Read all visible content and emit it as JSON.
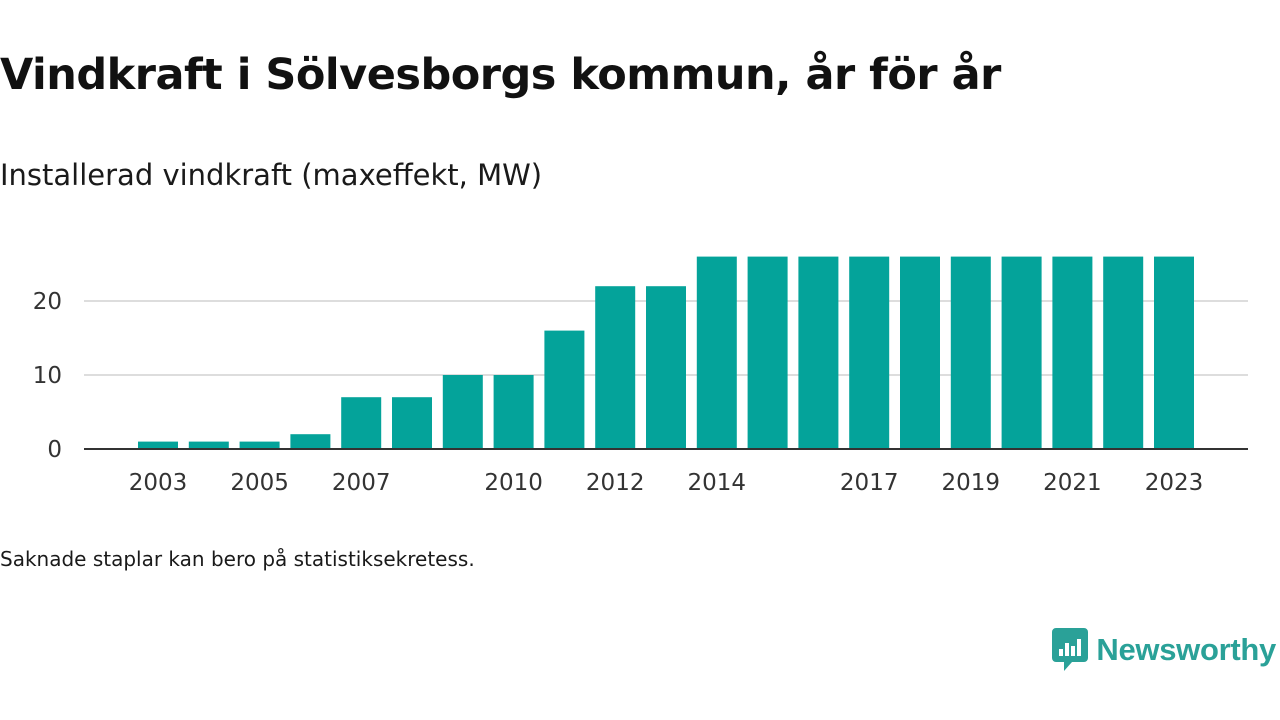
{
  "header": {
    "title": "Vindkraft i Sölvesborgs kommun, år för år",
    "subtitle": "Installerad vindkraft (maxeffekt, MW)"
  },
  "footer": {
    "note": "Saknade staplar kan bero på statistiksekretess.",
    "brand": "Newsworthy",
    "brand_icon": "bar-chart-speech-bubble-icon"
  },
  "colors": {
    "bar": "#04a39a",
    "grid": "#dddddd",
    "axis": "#333333",
    "brand": "#2aa198"
  },
  "chart_data": {
    "type": "bar",
    "title": "Vindkraft i Sölvesborgs kommun, år för år",
    "subtitle": "Installerad vindkraft (maxeffekt, MW)",
    "categories": [
      "2003",
      "2004",
      "2005",
      "2006",
      "2007",
      "2008",
      "2009",
      "2010",
      "2011",
      "2012",
      "2013",
      "2014",
      "2015",
      "2016",
      "2017",
      "2018",
      "2019",
      "2020",
      "2021",
      "2022",
      "2023"
    ],
    "values": [
      1,
      1,
      1,
      2,
      7,
      7,
      10,
      10,
      16,
      22,
      22,
      26,
      26,
      26,
      26,
      26,
      26,
      26,
      26,
      26,
      26
    ],
    "x_tick_labels": [
      "2003",
      "2005",
      "2007",
      "2010",
      "2012",
      "2014",
      "2017",
      "2019",
      "2021",
      "2023"
    ],
    "y_ticks": [
      0,
      10,
      20
    ],
    "ylim": [
      0,
      26
    ],
    "xlabel": "",
    "ylabel": "",
    "grid": true,
    "legend": "none"
  }
}
